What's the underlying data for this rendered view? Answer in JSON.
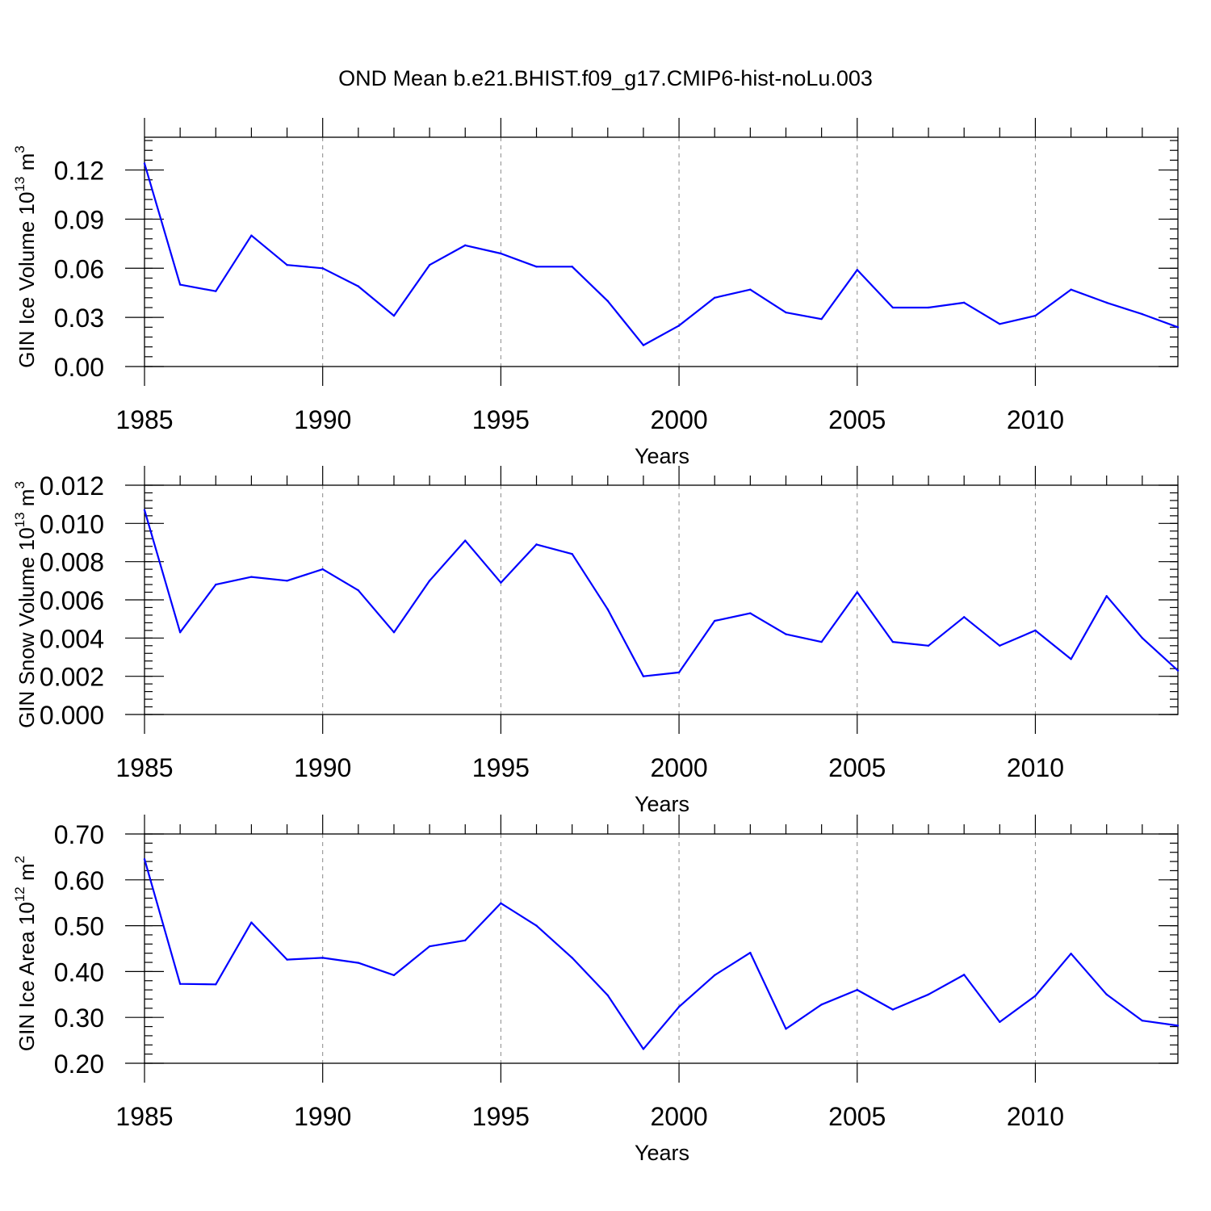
{
  "figure_title": "OND Mean b.e21.BHIST.f09_g17.CMIP6-hist-noLu.003",
  "line_color": "#0000ff",
  "chart_data": [
    {
      "type": "line",
      "title": "OND Mean b.e21.BHIST.f09_g17.CMIP6-hist-noLu.003",
      "xlabel": "Years",
      "ylabel_main": "GIN Ice Volume 10",
      "ylabel_exp": "13",
      "ylabel_unit": " m",
      "ylabel_unit_exp": "3",
      "xlim": [
        1985,
        2014
      ],
      "ylim": [
        0.0,
        0.14
      ],
      "x_ticks": [
        1985,
        1990,
        1995,
        2000,
        2005,
        2010
      ],
      "y_ticks": [
        0.0,
        0.03,
        0.06,
        0.09,
        0.12
      ],
      "y_tick_labels": [
        "0.00",
        "0.03",
        "0.06",
        "0.09",
        "0.12"
      ],
      "y_minor_step": 0.006,
      "grid": "dashed vertical at major x ticks",
      "x": [
        1985,
        1986,
        1987,
        1988,
        1989,
        1990,
        1991,
        1992,
        1993,
        1994,
        1995,
        1996,
        1997,
        1998,
        1999,
        2000,
        2001,
        2002,
        2003,
        2004,
        2005,
        2006,
        2007,
        2008,
        2009,
        2010,
        2011,
        2012,
        2013,
        2014
      ],
      "values": [
        0.124,
        0.05,
        0.046,
        0.08,
        0.062,
        0.06,
        0.049,
        0.031,
        0.062,
        0.074,
        0.069,
        0.061,
        0.061,
        0.04,
        0.013,
        0.025,
        0.042,
        0.047,
        0.033,
        0.029,
        0.059,
        0.036,
        0.036,
        0.039,
        0.026,
        0.031,
        0.047,
        0.039,
        0.032,
        0.024
      ]
    },
    {
      "type": "line",
      "xlabel": "Years",
      "ylabel_main": "GIN Snow Volume 10",
      "ylabel_exp": "13",
      "ylabel_unit": " m",
      "ylabel_unit_exp": "3",
      "xlim": [
        1985,
        2014
      ],
      "ylim": [
        0.0,
        0.012
      ],
      "x_ticks": [
        1985,
        1990,
        1995,
        2000,
        2005,
        2010
      ],
      "y_ticks": [
        0.0,
        0.002,
        0.004,
        0.006,
        0.008,
        0.01,
        0.012
      ],
      "y_tick_labels": [
        "0.000",
        "0.002",
        "0.004",
        "0.006",
        "0.008",
        "0.010",
        "0.012"
      ],
      "y_minor_step": 0.0004,
      "grid": "dashed vertical at major x ticks",
      "x": [
        1985,
        1986,
        1987,
        1988,
        1989,
        1990,
        1991,
        1992,
        1993,
        1994,
        1995,
        1996,
        1997,
        1998,
        1999,
        2000,
        2001,
        2002,
        2003,
        2004,
        2005,
        2006,
        2007,
        2008,
        2009,
        2010,
        2011,
        2012,
        2013,
        2014
      ],
      "values": [
        0.0107,
        0.0043,
        0.0068,
        0.0072,
        0.007,
        0.0076,
        0.0065,
        0.0043,
        0.007,
        0.0091,
        0.0069,
        0.0089,
        0.0084,
        0.0055,
        0.002,
        0.0022,
        0.0049,
        0.0053,
        0.0042,
        0.0038,
        0.0064,
        0.0038,
        0.0036,
        0.0051,
        0.0036,
        0.0044,
        0.0029,
        0.0062,
        0.004,
        0.0023
      ]
    },
    {
      "type": "line",
      "xlabel": "Years",
      "ylabel_main": "GIN Ice Area 10",
      "ylabel_exp": "12",
      "ylabel_unit": " m",
      "ylabel_unit_exp": "2",
      "xlim": [
        1985,
        2014
      ],
      "ylim": [
        0.2,
        0.7
      ],
      "x_ticks": [
        1985,
        1990,
        1995,
        2000,
        2005,
        2010
      ],
      "y_ticks": [
        0.2,
        0.3,
        0.4,
        0.5,
        0.6,
        0.7
      ],
      "y_tick_labels": [
        "0.20",
        "0.30",
        "0.40",
        "0.50",
        "0.60",
        "0.70"
      ],
      "y_minor_step": 0.02,
      "grid": "dashed vertical at major x ticks",
      "x": [
        1985,
        1986,
        1987,
        1988,
        1989,
        1990,
        1991,
        1992,
        1993,
        1994,
        1995,
        1996,
        1997,
        1998,
        1999,
        2000,
        2001,
        2002,
        2003,
        2004,
        2005,
        2006,
        2007,
        2008,
        2009,
        2010,
        2011,
        2012,
        2013,
        2014
      ],
      "values": [
        0.645,
        0.373,
        0.372,
        0.507,
        0.426,
        0.43,
        0.419,
        0.392,
        0.455,
        0.468,
        0.549,
        0.5,
        0.43,
        0.348,
        0.231,
        0.323,
        0.392,
        0.441,
        0.275,
        0.328,
        0.36,
        0.317,
        0.35,
        0.393,
        0.29,
        0.347,
        0.439,
        0.35,
        0.293,
        0.282
      ]
    }
  ]
}
